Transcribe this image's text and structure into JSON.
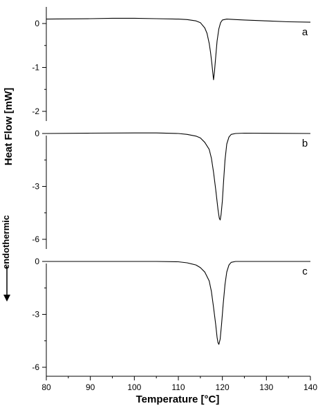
{
  "chart_data": [
    {
      "type": "line",
      "panel_label": "a",
      "x_range": [
        80,
        140
      ],
      "ylim": [
        -2,
        0.1
      ],
      "yticks": [
        0,
        -1,
        -2
      ],
      "series": [
        {
          "x": [
            80,
            90,
            95,
            100,
            105,
            110,
            112,
            114,
            115,
            116,
            116.5,
            117,
            117.3,
            117.6,
            117.8,
            118,
            118.2,
            118.5,
            118.8,
            119.2,
            119.6,
            120,
            121,
            123,
            125,
            130,
            135,
            140
          ],
          "y": [
            0.1,
            0.11,
            0.12,
            0.12,
            0.11,
            0.1,
            0.09,
            0.06,
            0.02,
            -0.1,
            -0.22,
            -0.45,
            -0.65,
            -0.9,
            -1.1,
            -1.28,
            -1.1,
            -0.75,
            -0.4,
            -0.12,
            0.02,
            0.08,
            0.1,
            0.09,
            0.08,
            0.06,
            0.04,
            0.03
          ]
        }
      ]
    },
    {
      "type": "line",
      "panel_label": "b",
      "x_range": [
        80,
        140
      ],
      "ylim": [
        -6,
        0.3
      ],
      "yticks": [
        0,
        -3,
        -6
      ],
      "series": [
        {
          "x": [
            80,
            90,
            100,
            105,
            110,
            112,
            114,
            115,
            116,
            117,
            117.5,
            118,
            118.5,
            119,
            119.3,
            119.5,
            119.7,
            120,
            120.3,
            120.6,
            121,
            121.5,
            122,
            123,
            125,
            130,
            140
          ],
          "y": [
            0.0,
            0.02,
            0.03,
            0.03,
            0.0,
            -0.05,
            -0.15,
            -0.25,
            -0.5,
            -0.9,
            -1.4,
            -2.2,
            -3.2,
            -4.3,
            -4.8,
            -4.9,
            -4.6,
            -3.8,
            -2.6,
            -1.5,
            -0.6,
            -0.2,
            -0.05,
            0.0,
            0.02,
            0.01,
            0.0
          ]
        }
      ]
    },
    {
      "type": "line",
      "panel_label": "c",
      "x_range": [
        80,
        140
      ],
      "ylim": [
        -6,
        0.3
      ],
      "yticks": [
        0,
        -3,
        -6
      ],
      "series": [
        {
          "x": [
            80,
            90,
            100,
            105,
            110,
            112,
            114,
            115,
            116,
            117,
            117.5,
            118,
            118.5,
            118.8,
            119,
            119.2,
            119.5,
            119.8,
            120.2,
            120.6,
            121,
            121.5,
            122,
            123,
            125,
            130,
            140
          ],
          "y": [
            0.0,
            0.0,
            0.0,
            0.0,
            -0.02,
            -0.08,
            -0.2,
            -0.35,
            -0.6,
            -1.1,
            -1.7,
            -2.6,
            -3.6,
            -4.3,
            -4.6,
            -4.7,
            -4.4,
            -3.6,
            -2.4,
            -1.3,
            -0.6,
            -0.2,
            -0.05,
            0.0,
            0.0,
            0.0,
            0.0
          ]
        }
      ]
    }
  ],
  "x_axis": {
    "ticks": [
      80,
      90,
      100,
      110,
      120,
      130,
      140
    ],
    "xlabel": "Temperature [°C]"
  },
  "ylabel": "Heat Flow [mW]",
  "side_note": "endothermic"
}
